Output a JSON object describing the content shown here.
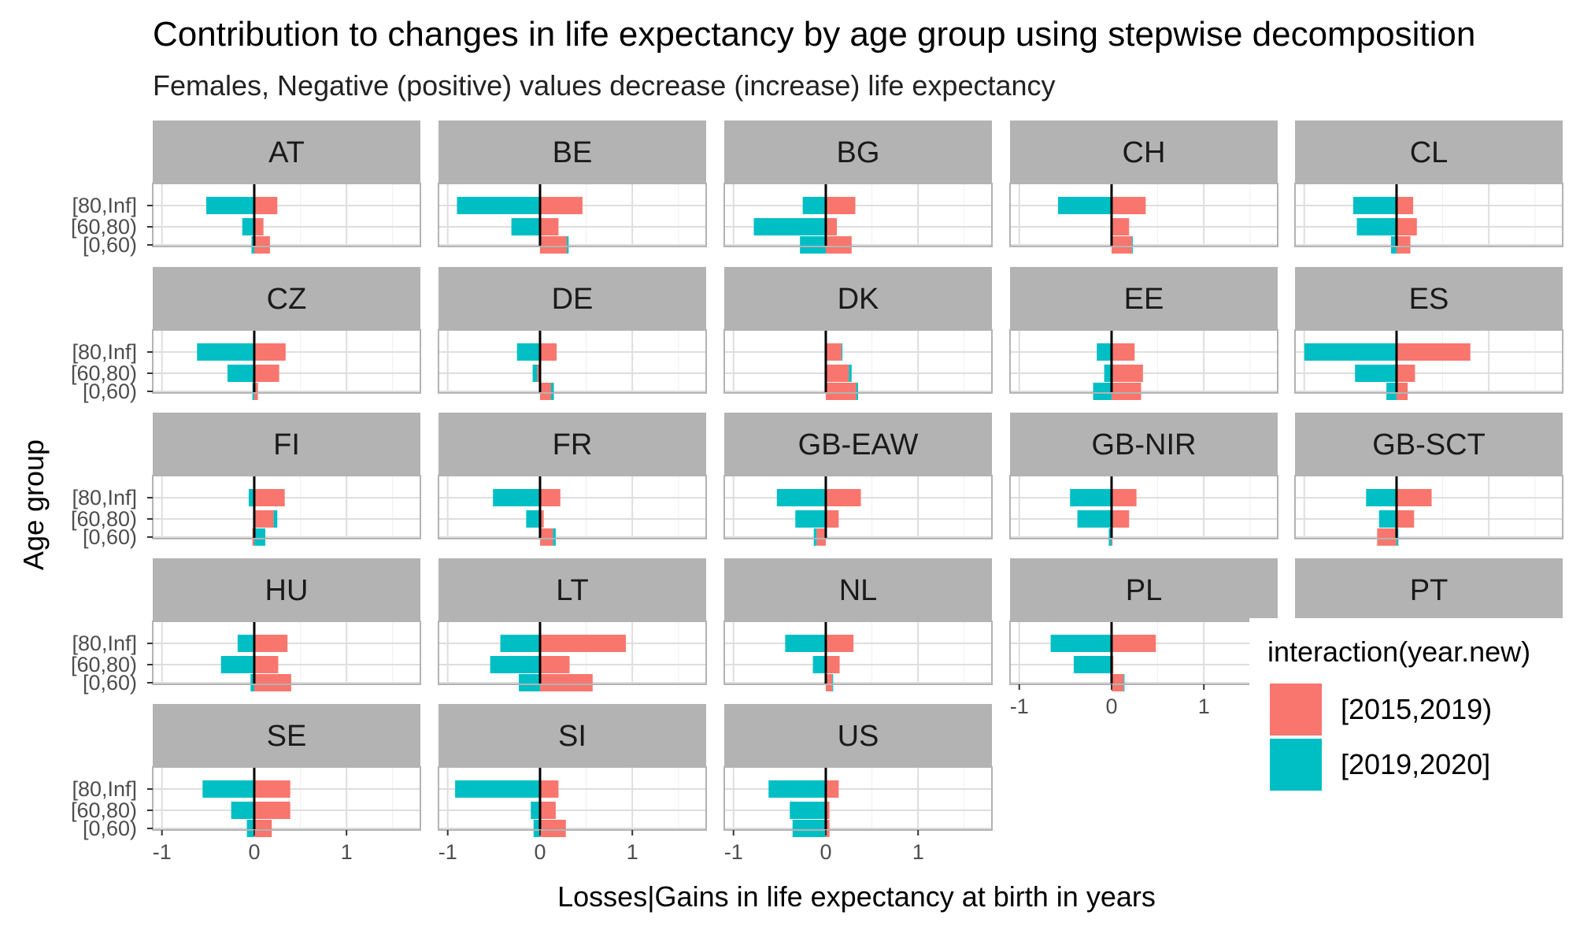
{
  "chart_data": {
    "type": "bar",
    "orientation": "horizontal",
    "faceted": true,
    "title": "Contribution to changes in life expectancy by age group using stepwise decomposition",
    "subtitle": "Females, Negative (positive) values decrease (increase) life expectancy",
    "xlabel": "Losses|Gains in life expectancy at birth in years",
    "ylabel": "Age group",
    "xlim": [
      -1.1,
      1.8
    ],
    "x_ticks": [
      "-1",
      "0",
      "1"
    ],
    "x_tick_values": [
      -1,
      0,
      1
    ],
    "categories": [
      "[80,Inf]",
      "[60,80)",
      "[0,60)"
    ],
    "grid": true,
    "legend": {
      "title": "interaction(year.new)",
      "position": "right",
      "entries": [
        {
          "label": "[2015,2019)",
          "color": "#F8766D"
        },
        {
          "label": "[2019,2020]",
          "color": "#00BFC4"
        }
      ]
    },
    "colors": {
      "2015-2019": "#F8766D",
      "2019-2020": "#00BFC4",
      "strip": "#b3b3b3",
      "grid": "#dedede",
      "panel_border": "#b3b3b3"
    },
    "panels": [
      {
        "name": "AT",
        "v2015_2019": [
          0.25,
          0.1,
          0.17
        ],
        "v2019_2020": [
          -0.52,
          -0.13,
          -0.03
        ]
      },
      {
        "name": "BE",
        "v2015_2019": [
          0.46,
          0.2,
          0.29
        ],
        "v2019_2020": [
          -0.9,
          -0.31,
          0.02
        ]
      },
      {
        "name": "BG",
        "v2015_2019": [
          0.32,
          0.12,
          0.28
        ],
        "v2019_2020": [
          -0.25,
          -0.78,
          -0.28
        ]
      },
      {
        "name": "CH",
        "v2015_2019": [
          0.37,
          0.19,
          0.22
        ],
        "v2019_2020": [
          -0.58,
          -0.01,
          0.01
        ]
      },
      {
        "name": "CL",
        "v2015_2019": [
          0.18,
          0.22,
          0.15
        ],
        "v2019_2020": [
          -0.47,
          -0.43,
          -0.06
        ]
      },
      {
        "name": "CZ",
        "v2015_2019": [
          0.34,
          0.27,
          0.04
        ],
        "v2019_2020": [
          -0.62,
          -0.29,
          -0.02
        ]
      },
      {
        "name": "DE",
        "v2015_2019": [
          0.18,
          -0.03,
          0.12
        ],
        "v2019_2020": [
          -0.25,
          -0.05,
          0.03
        ]
      },
      {
        "name": "DK",
        "v2015_2019": [
          0.17,
          0.25,
          0.33
        ],
        "v2019_2020": [
          0.01,
          0.03,
          0.02
        ]
      },
      {
        "name": "EE",
        "v2015_2019": [
          0.25,
          0.34,
          0.32
        ],
        "v2019_2020": [
          -0.16,
          -0.08,
          -0.2
        ]
      },
      {
        "name": "ES",
        "v2015_2019": [
          0.8,
          0.2,
          0.12
        ],
        "v2019_2020": [
          -1.0,
          -0.45,
          -0.11
        ]
      },
      {
        "name": "FI",
        "v2015_2019": [
          0.33,
          0.21,
          -0.02
        ],
        "v2019_2020": [
          -0.06,
          0.04,
          0.12
        ]
      },
      {
        "name": "FR",
        "v2015_2019": [
          0.22,
          0.04,
          0.14
        ],
        "v2019_2020": [
          -0.51,
          -0.15,
          0.03
        ]
      },
      {
        "name": "GB-EAW",
        "v2015_2019": [
          0.38,
          0.14,
          -0.1
        ],
        "v2019_2020": [
          -0.53,
          -0.33,
          -0.03
        ]
      },
      {
        "name": "GB-NIR",
        "v2015_2019": [
          0.27,
          0.19,
          0.01
        ],
        "v2019_2020": [
          -0.45,
          -0.37,
          -0.03
        ]
      },
      {
        "name": "GB-SCT",
        "v2015_2019": [
          0.38,
          0.19,
          -0.21
        ],
        "v2019_2020": [
          -0.33,
          -0.19,
          0.02
        ]
      },
      {
        "name": "HU",
        "v2015_2019": [
          0.36,
          0.26,
          0.4
        ],
        "v2019_2020": [
          -0.18,
          -0.36,
          -0.04
        ]
      },
      {
        "name": "LT",
        "v2015_2019": [
          0.93,
          0.32,
          0.57
        ],
        "v2019_2020": [
          -0.43,
          -0.54,
          -0.23
        ]
      },
      {
        "name": "NL",
        "v2015_2019": [
          0.3,
          0.15,
          0.07
        ],
        "v2019_2020": [
          -0.44,
          -0.14,
          0.01
        ]
      },
      {
        "name": "PL",
        "v2015_2019": [
          0.48,
          0.02,
          0.13
        ],
        "v2019_2020": [
          -0.66,
          -0.41,
          0.01
        ]
      },
      {
        "name": "PT",
        "v2015_2019": [],
        "v2019_2020": []
      },
      {
        "name": "SE",
        "v2015_2019": [
          0.39,
          0.39,
          0.19
        ],
        "v2019_2020": [
          -0.56,
          -0.25,
          -0.08
        ]
      },
      {
        "name": "SI",
        "v2015_2019": [
          0.2,
          0.17,
          0.28
        ],
        "v2019_2020": [
          -0.92,
          -0.1,
          -0.07
        ]
      },
      {
        "name": "US",
        "v2015_2019": [
          0.14,
          0.04,
          0.04
        ],
        "v2019_2020": [
          -0.62,
          -0.39,
          -0.36
        ]
      }
    ]
  }
}
